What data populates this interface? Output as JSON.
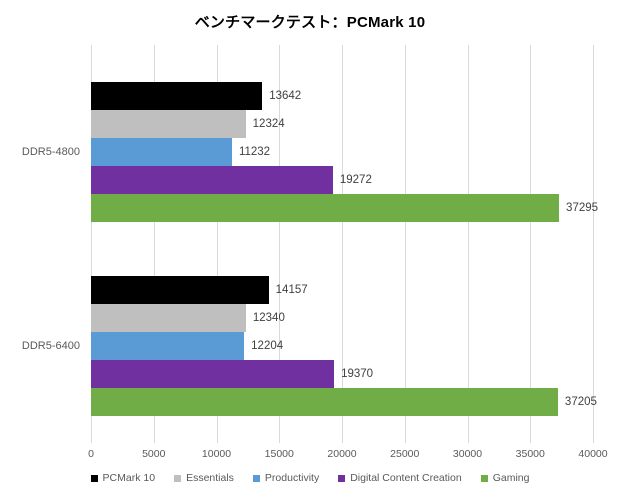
{
  "chart_data": {
    "type": "bar",
    "orientation": "horizontal",
    "title": "ベンチマークテスト：PCMark 10",
    "categories": [
      "DDR5-4800",
      "DDR5-6400"
    ],
    "series": [
      {
        "name": "PCMark 10",
        "color": "#000000",
        "values": [
          13642,
          14157
        ]
      },
      {
        "name": "Essentials",
        "color": "#bfbfbf",
        "values": [
          12324,
          12340
        ]
      },
      {
        "name": "Productivity",
        "color": "#5b9bd5",
        "values": [
          11232,
          12204
        ]
      },
      {
        "name": "Digital Content Creation",
        "color": "#7030a0",
        "values": [
          19272,
          19370
        ]
      },
      {
        "name": "Gaming",
        "color": "#70ad47",
        "values": [
          37295,
          37205
        ]
      }
    ],
    "xlim": [
      0,
      40000
    ],
    "x_ticks": [
      0,
      5000,
      10000,
      15000,
      20000,
      25000,
      30000,
      35000,
      40000
    ],
    "grid": true,
    "gridline_color": "#d9d9d9",
    "axis_text_color": "#595959",
    "value_label_color": "#404040",
    "legend_position": "bottom"
  }
}
